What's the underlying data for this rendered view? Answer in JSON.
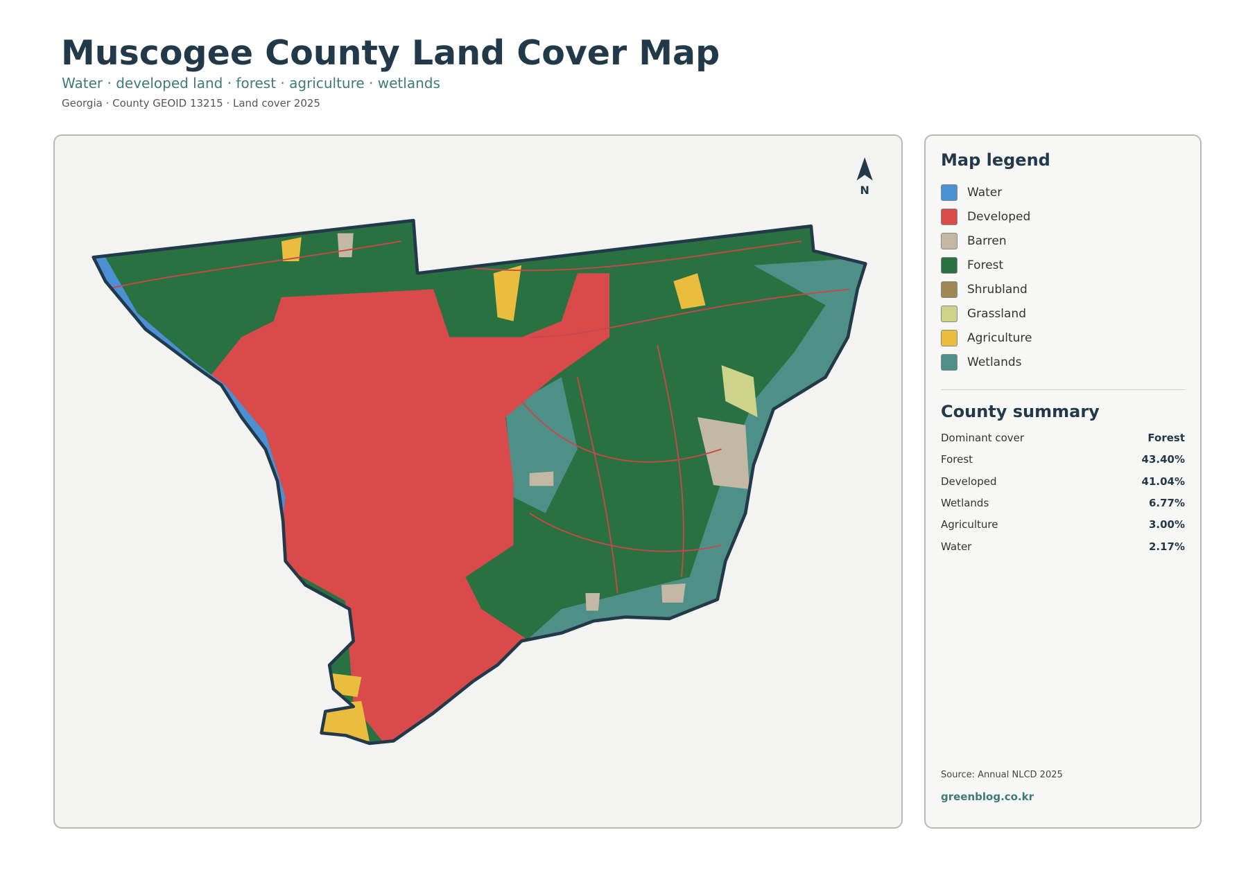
{
  "header": {
    "title": "Muscogee County Land Cover Map",
    "subtitle": "Water · developed land · forest · agriculture · wetlands",
    "meta": "Georgia · County GEOID 13215 · Land cover 2025"
  },
  "map": {
    "north": "N"
  },
  "legend": {
    "title": "Map legend",
    "items": [
      {
        "label": "Water",
        "color": "#4a90d2"
      },
      {
        "label": "Developed",
        "color": "#d94a4a"
      },
      {
        "label": "Barren",
        "color": "#c2b8a3"
      },
      {
        "label": "Forest",
        "color": "#2a7142"
      },
      {
        "label": "Shrubland",
        "color": "#a08856"
      },
      {
        "label": "Grassland",
        "color": "#cdd38a"
      },
      {
        "label": "Agriculture",
        "color": "#ebbd3f"
      },
      {
        "label": "Wetlands",
        "color": "#4e9088"
      }
    ]
  },
  "summary": {
    "title": "County summary",
    "rows": [
      [
        "Dominant cover",
        "Forest"
      ],
      [
        "Forest",
        "43.40%"
      ],
      [
        "Developed",
        "41.04%"
      ],
      [
        "Wetlands",
        "6.77%"
      ],
      [
        "Agriculture",
        "3.00%"
      ],
      [
        "Water",
        "2.17%"
      ]
    ]
  },
  "footer": {
    "source": "Source: Annual NLCD 2025",
    "site": "greenblog.co.kr"
  }
}
